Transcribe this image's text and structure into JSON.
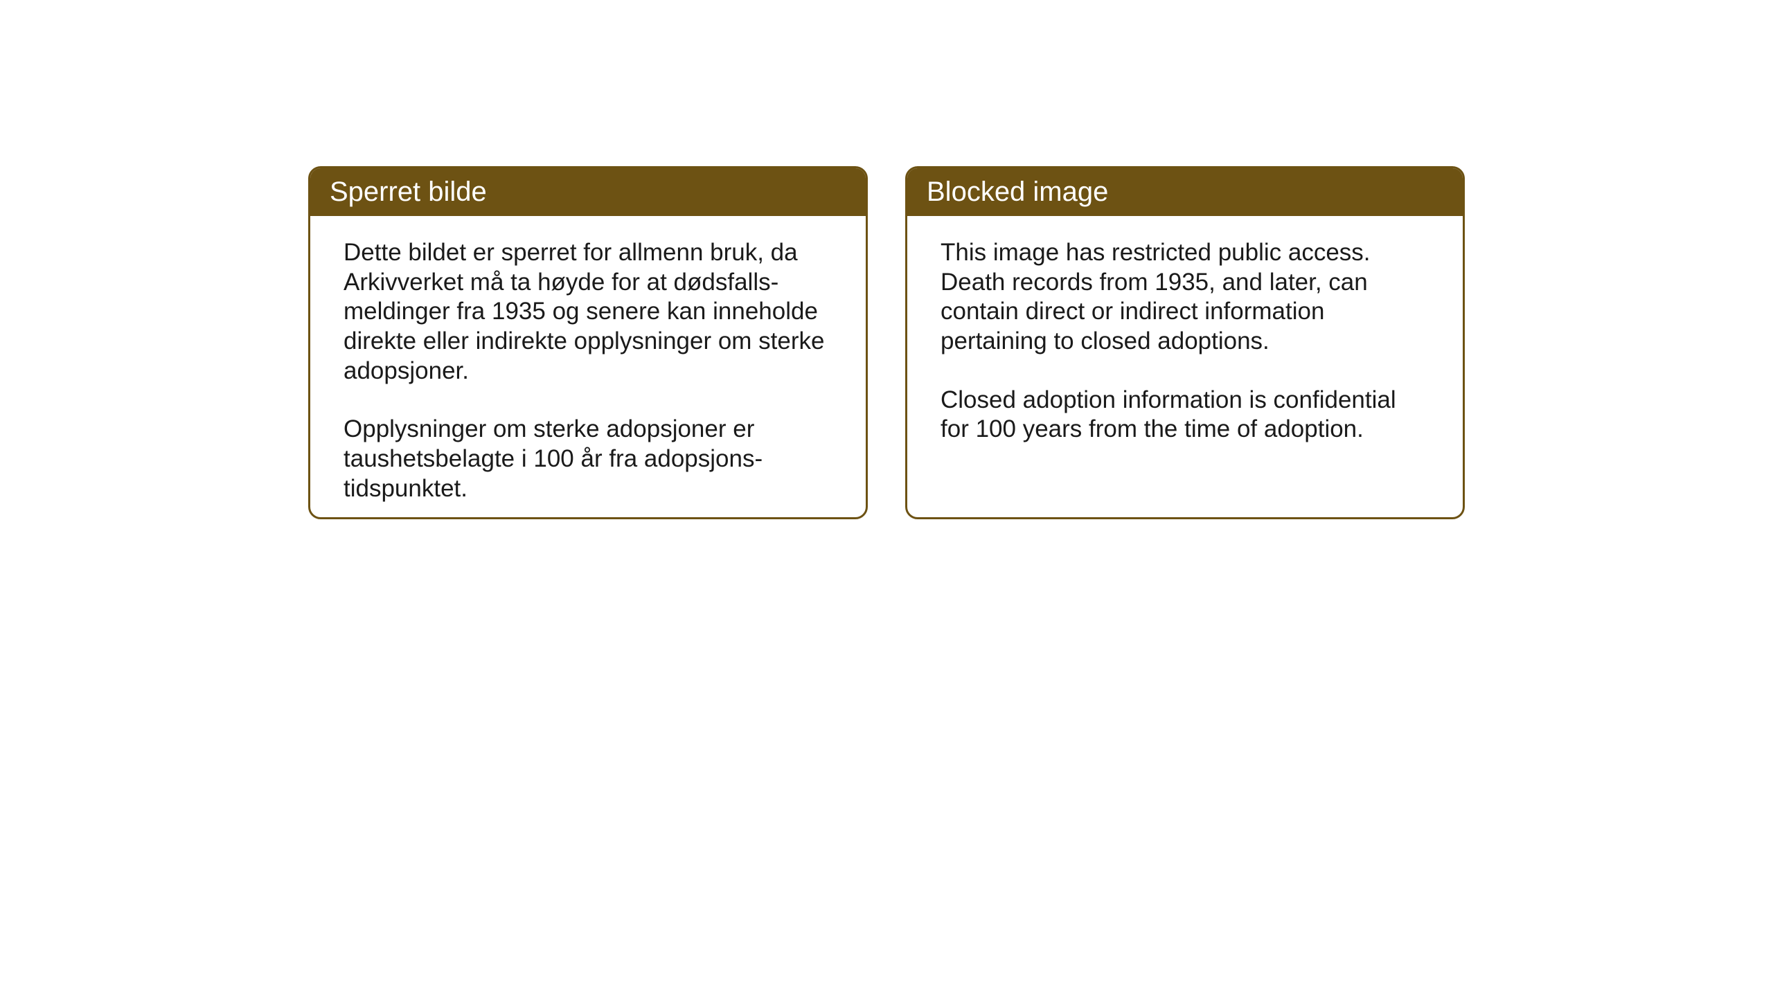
{
  "background_color": "#ffffff",
  "card_border_color": "#6d5213",
  "card_border_width": 3,
  "card_border_radius": 18,
  "header_background_color": "#6d5213",
  "header_text_color": "#ffffff",
  "header_fontsize": 40,
  "body_text_color": "#1a1a1a",
  "body_fontsize": 35,
  "cards": [
    {
      "title": "Sperret bilde",
      "paragraph1": "Dette bildet er sperret for allmenn bruk, da Arkivverket må ta høyde for at dødsfalls-meldinger fra 1935 og senere kan inneholde direkte eller indirekte opplysninger om sterke adopsjoner.",
      "paragraph2": "Opplysninger om sterke adopsjoner er taushetsbelagte i 100 år fra adopsjons-tidspunktet."
    },
    {
      "title": "Blocked image",
      "paragraph1": "This image has restricted public access. Death records from 1935, and later, can contain direct or indirect information pertaining to closed adoptions.",
      "paragraph2": "Closed adoption information is confidential for 100 years from the time of adoption."
    }
  ]
}
